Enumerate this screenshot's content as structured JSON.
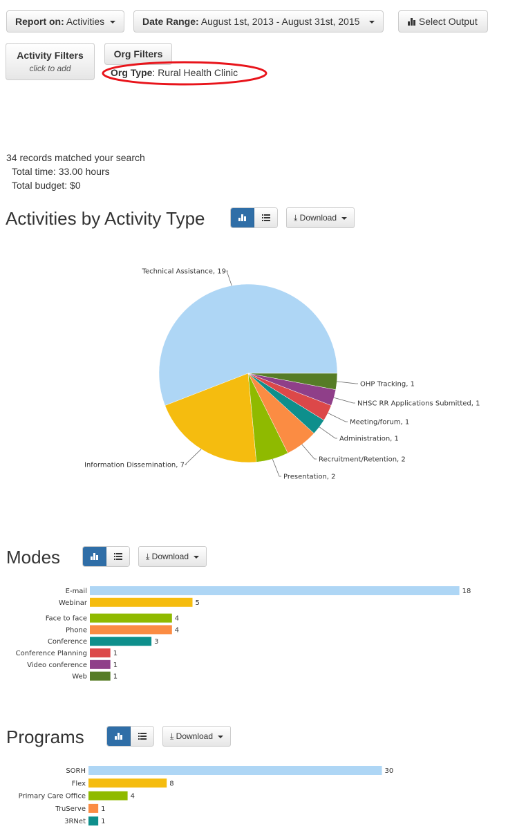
{
  "toolbar": {
    "report_on_label": "Report on:",
    "report_on_value": "Activities",
    "date_range_label": "Date Range:",
    "date_range_value": "August 1st, 2013 - August 31st, 2015",
    "select_output_label": "Select Output"
  },
  "filters": {
    "activity_filters_label": "Activity Filters",
    "activity_filters_hint": "click to add",
    "org_filters_label": "Org Filters",
    "org_type_label": "Org Type",
    "org_type_value": ": Rural Health Clinic"
  },
  "summary": {
    "records": "34 records matched your search",
    "total_time": "Total time: 33.00 hours",
    "total_budget": "Total budget: $0"
  },
  "download_label": "Download",
  "colors": {
    "light_blue": "#aed6f5",
    "yellow": "#f5bc0f",
    "green": "#8fba00",
    "orange": "#fb8c43",
    "teal": "#0e8f8c",
    "red": "#dc4849",
    "purple": "#8f3f89",
    "darkgreen": "#567c26",
    "button_active": "#2f6ea7",
    "annotation_ring": "#e8141b"
  },
  "chart_data": [
    {
      "type": "pie",
      "title": "Activities by Activity Type",
      "slices": [
        {
          "label": "Technical Assistance",
          "value": 19,
          "color": "#aed6f5"
        },
        {
          "label": "Information Dissemination",
          "value": 7,
          "color": "#f5bc0f"
        },
        {
          "label": "Presentation",
          "value": 2,
          "color": "#8fba00"
        },
        {
          "label": "Recruitment/Retention",
          "value": 2,
          "color": "#fb8c43"
        },
        {
          "label": "Administration",
          "value": 1,
          "color": "#0e8f8c"
        },
        {
          "label": "Meeting/forum",
          "value": 1,
          "color": "#dc4849"
        },
        {
          "label": "NHSC RR Applications Submitted",
          "value": 1,
          "color": "#8f3f89"
        },
        {
          "label": "OHP Tracking",
          "value": 1,
          "color": "#567c26"
        }
      ]
    },
    {
      "type": "bar",
      "title": "Modes",
      "orientation": "horizontal",
      "categories": [
        "E-mail",
        "Webinar",
        "Face to face",
        "Phone",
        "Conference",
        "Conference Planning",
        "Video conference",
        "Web"
      ],
      "values": [
        18,
        5,
        4,
        4,
        3,
        1,
        1,
        1
      ],
      "colors": [
        "#aed6f5",
        "#f5bc0f",
        "#8fba00",
        "#fb8c43",
        "#0e8f8c",
        "#dc4849",
        "#8f3f89",
        "#567c26"
      ]
    },
    {
      "type": "bar",
      "title": "Programs",
      "orientation": "horizontal",
      "categories": [
        "SORH",
        "Flex",
        "Primary Care Office",
        "TruServe",
        "3RNet"
      ],
      "values": [
        30,
        8,
        4,
        1,
        1
      ],
      "colors": [
        "#aed6f5",
        "#f5bc0f",
        "#8fba00",
        "#fb8c43",
        "#0e8f8c"
      ]
    }
  ]
}
